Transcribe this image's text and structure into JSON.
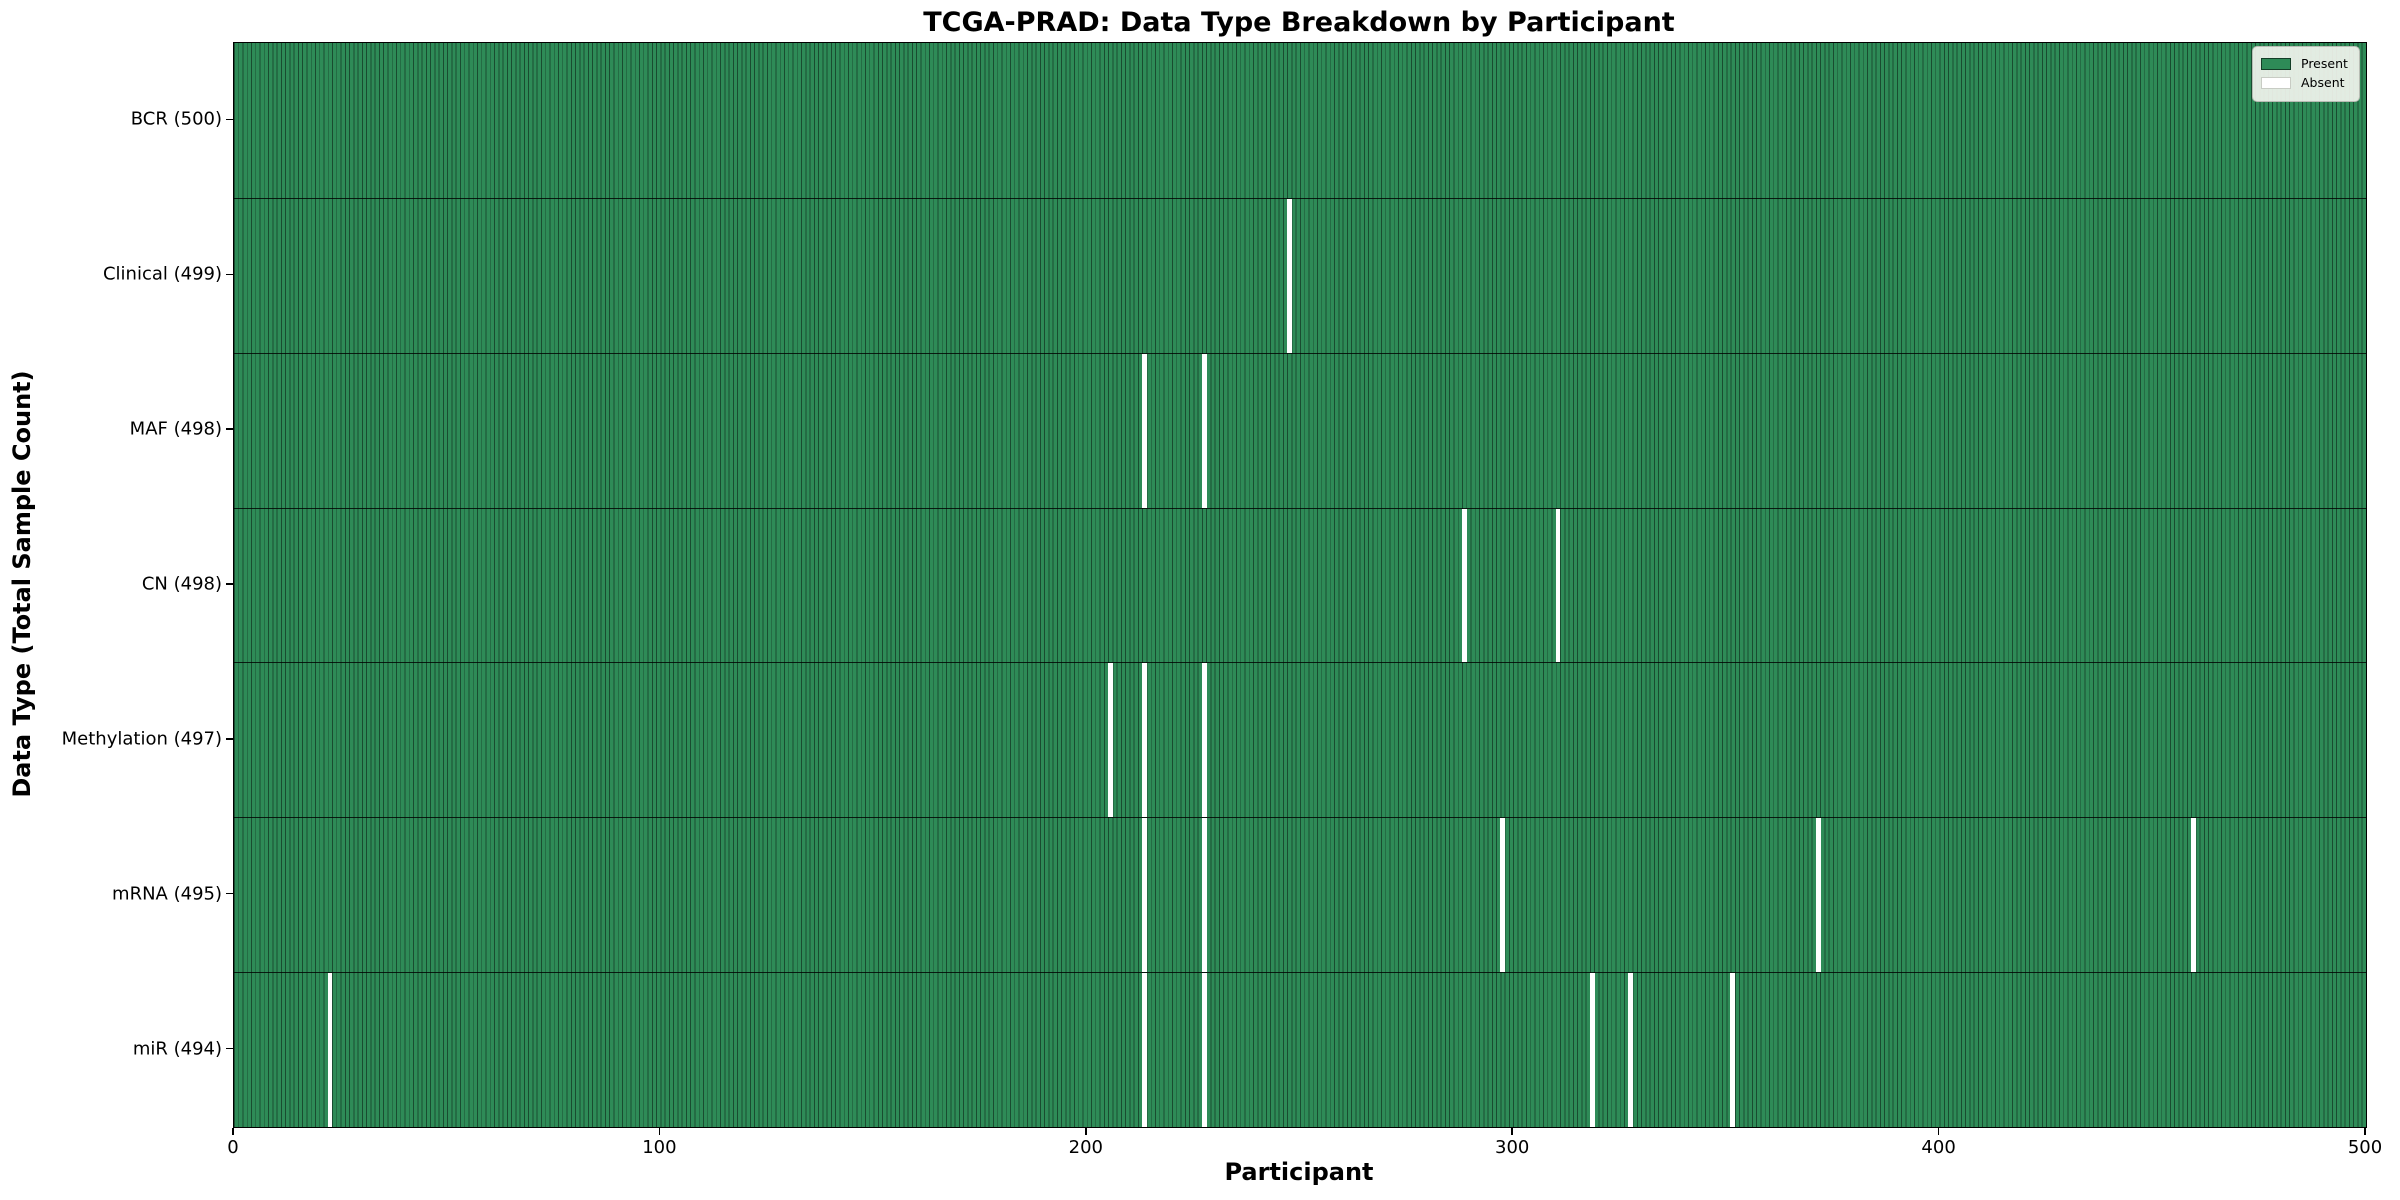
{
  "chart_data": {
    "type": "heatmap",
    "title": "TCGA-PRAD: Data Type Breakdown by Participant",
    "xlabel": "Participant",
    "ylabel": "Data Type (Total Sample Count)",
    "xlim": [
      0,
      500
    ],
    "n_participants": 500,
    "x_ticks": [
      0,
      100,
      200,
      300,
      400,
      500
    ],
    "grid": false,
    "legend_position": "upper right",
    "legend": [
      {
        "label": "Present",
        "swatch": "present"
      },
      {
        "label": "Absent",
        "swatch": "absent"
      }
    ],
    "rows": [
      {
        "label": "BCR (500)",
        "data_type": "BCR",
        "total": 500,
        "absent_participants": []
      },
      {
        "label": "Clinical (499)",
        "data_type": "Clinical",
        "total": 499,
        "absent_participants": [
          247
        ]
      },
      {
        "label": "MAF (498)",
        "data_type": "MAF",
        "total": 498,
        "absent_participants": [
          213,
          227
        ]
      },
      {
        "label": "CN (498)",
        "data_type": "CN",
        "total": 498,
        "absent_participants": [
          288,
          310
        ]
      },
      {
        "label": "Methylation (497)",
        "data_type": "Methylation",
        "total": 497,
        "absent_participants": [
          205,
          213,
          227
        ]
      },
      {
        "label": "mRNA (495)",
        "data_type": "mRNA",
        "total": 495,
        "absent_participants": [
          213,
          227,
          297,
          371,
          459
        ]
      },
      {
        "label": "miR (494)",
        "data_type": "miR",
        "total": 494,
        "absent_participants": [
          22,
          213,
          227,
          318,
          327,
          351
        ]
      }
    ],
    "colors": {
      "present_fill": "#2e8b57",
      "cell_edge": "rgba(0,0,0,0.45)",
      "absent_fill": "#ffffff",
      "row_separator": "rgba(0,0,0,0.8)",
      "plot_border": "#000000",
      "legend_bg": "rgba(242,244,238,0.92)",
      "legend_border": "#b8bcb4",
      "legend_absent_border": "#c8ccc4"
    }
  }
}
